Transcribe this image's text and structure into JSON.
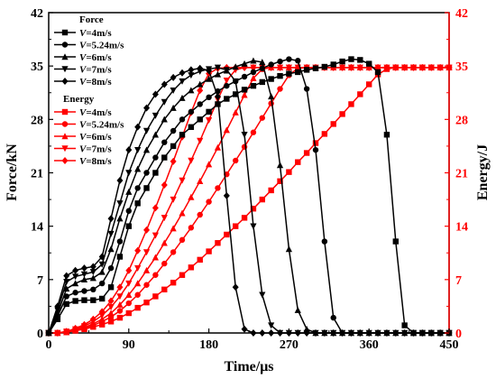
{
  "chart_data": {
    "type": "line",
    "title": "",
    "xlabel": "Time/μs",
    "ylabel_left": "Force/kN",
    "ylabel_right": "Energy/J",
    "xlim": [
      0,
      450
    ],
    "ylim_left": [
      0,
      42
    ],
    "ylim_right": [
      0,
      42
    ],
    "xticks": [
      0,
      90,
      180,
      270,
      360,
      450
    ],
    "yticks_left": [
      0,
      7,
      14,
      21,
      28,
      35,
      42
    ],
    "yticks_right": [
      0,
      7,
      14,
      21,
      28,
      35,
      42
    ],
    "grid": false,
    "legend_placement": "top-left",
    "colors": {
      "force": "#000000",
      "energy": "#ff0000"
    },
    "legend": {
      "force_title": "Force",
      "energy_title": "Energy",
      "entries": [
        {
          "var": "V",
          "rest": "=4m/s"
        },
        {
          "var": "V",
          "rest": "=5.24m/s"
        },
        {
          "var": "V",
          "rest": "=6m/s"
        },
        {
          "var": "V",
          "rest": "=7m/s"
        },
        {
          "var": "V",
          "rest": "=8m/s"
        }
      ]
    },
    "force_series": [
      {
        "marker": "square",
        "x": [
          0,
          10,
          20,
          30,
          40,
          50,
          60,
          70,
          80,
          90,
          100,
          110,
          120,
          130,
          140,
          150,
          160,
          170,
          180,
          190,
          200,
          210,
          220,
          230,
          240,
          250,
          260,
          270,
          280,
          290,
          300,
          310,
          320,
          330,
          340,
          350,
          360,
          370,
          380,
          390,
          400,
          410,
          420,
          430,
          440,
          450
        ],
        "y": [
          0,
          1.8,
          3.8,
          4.2,
          4.3,
          4.3,
          4.5,
          6,
          10,
          14,
          17,
          19,
          21,
          23,
          24.5,
          26,
          27,
          28,
          29,
          30,
          30.7,
          31.3,
          31.9,
          32.4,
          32.9,
          33.3,
          33.7,
          34,
          34.2,
          34.5,
          34.7,
          34.9,
          35.2,
          35.6,
          35.9,
          35.8,
          35.3,
          34.2,
          26,
          12,
          1,
          0,
          0,
          0,
          0,
          0
        ]
      },
      {
        "marker": "circle",
        "x": [
          0,
          10,
          20,
          30,
          40,
          50,
          60,
          70,
          80,
          90,
          100,
          110,
          120,
          130,
          140,
          150,
          160,
          170,
          180,
          190,
          200,
          210,
          220,
          230,
          240,
          250,
          260,
          270,
          280,
          290,
          300,
          310,
          320,
          330,
          340,
          350,
          360,
          370,
          380,
          390,
          400,
          410,
          420,
          430,
          440,
          450
        ],
        "y": [
          0,
          2.2,
          4.8,
          5.3,
          5.5,
          5.7,
          6.5,
          8.5,
          12,
          16,
          19,
          21,
          23,
          25,
          26.5,
          28,
          29,
          30,
          30.9,
          31.7,
          32.4,
          33,
          33.6,
          34.2,
          34.7,
          35.2,
          35.6,
          35.9,
          35.7,
          32,
          24,
          12,
          2,
          0,
          0,
          0,
          0,
          0,
          0,
          0,
          0,
          0,
          0,
          0,
          0,
          0
        ]
      },
      {
        "marker": "triangle-up",
        "x": [
          0,
          10,
          20,
          30,
          40,
          50,
          60,
          70,
          80,
          90,
          100,
          110,
          120,
          130,
          140,
          150,
          160,
          170,
          180,
          190,
          200,
          210,
          220,
          230,
          240,
          250,
          260,
          270,
          280,
          290,
          300,
          310,
          320,
          330,
          340,
          350,
          360,
          370,
          380,
          390,
          400,
          410,
          420,
          430,
          440,
          450
        ],
        "y": [
          0,
          2.5,
          5.8,
          6.5,
          7,
          7.2,
          8,
          11,
          15,
          18.5,
          21.5,
          24,
          26,
          28,
          29.5,
          30.8,
          31.8,
          32.6,
          33.3,
          33.9,
          34.4,
          34.9,
          35.3,
          35.7,
          35.5,
          31,
          22,
          11,
          3,
          0.5,
          0,
          0,
          0,
          0,
          0,
          0,
          0,
          0,
          0,
          0,
          0,
          0,
          0,
          0,
          0,
          0
        ]
      },
      {
        "marker": "triangle-down",
        "x": [
          0,
          10,
          20,
          30,
          40,
          50,
          60,
          70,
          80,
          90,
          100,
          110,
          120,
          130,
          140,
          150,
          160,
          170,
          180,
          190,
          200,
          210,
          220,
          230,
          240,
          250,
          260,
          270,
          280,
          290,
          300,
          310,
          320,
          330,
          340,
          350,
          360,
          370,
          380,
          390,
          400,
          410,
          420,
          430,
          440,
          450
        ],
        "y": [
          0,
          3,
          6.7,
          7.4,
          7.7,
          8,
          9,
          13,
          17,
          21,
          24,
          26.5,
          28.5,
          30.3,
          31.8,
          33,
          33.8,
          34.3,
          34.6,
          34.8,
          34.5,
          33,
          26,
          14,
          5,
          1,
          0,
          0,
          0,
          0,
          0,
          0,
          0,
          0,
          0,
          0,
          0,
          0,
          0,
          0,
          0,
          0,
          0,
          0,
          0,
          0
        ]
      },
      {
        "marker": "diamond",
        "x": [
          0,
          10,
          20,
          30,
          40,
          50,
          60,
          70,
          80,
          90,
          100,
          110,
          120,
          130,
          140,
          150,
          160,
          170,
          180,
          190,
          200,
          210,
          220,
          230,
          240,
          250,
          260,
          270,
          280,
          290,
          300,
          310,
          320,
          330,
          340,
          350,
          360,
          370,
          380,
          390,
          400,
          410,
          420,
          430,
          440,
          450
        ],
        "y": [
          0,
          3.5,
          7.5,
          8.2,
          8.5,
          8.7,
          10,
          15,
          20,
          24,
          27,
          29.5,
          31.3,
          32.6,
          33.5,
          34.1,
          34.5,
          34.7,
          34.4,
          31,
          18,
          6,
          0.5,
          0,
          0,
          0,
          0,
          0,
          0,
          0,
          0,
          0,
          0,
          0,
          0,
          0,
          0,
          0,
          0,
          0,
          0,
          0,
          0,
          0,
          0,
          0
        ]
      }
    ],
    "energy_series": [
      {
        "marker": "square",
        "x": [
          0,
          10,
          20,
          30,
          40,
          50,
          60,
          70,
          80,
          90,
          100,
          110,
          120,
          130,
          140,
          150,
          160,
          170,
          180,
          190,
          200,
          210,
          220,
          230,
          240,
          250,
          260,
          270,
          280,
          290,
          300,
          310,
          320,
          330,
          340,
          350,
          360,
          370,
          380,
          390,
          400,
          410,
          420,
          430,
          440,
          450
        ],
        "y": [
          0,
          0,
          0.1,
          0.3,
          0.5,
          0.8,
          1.1,
          1.5,
          2,
          2.6,
          3.3,
          4,
          4.8,
          5.7,
          6.6,
          7.6,
          8.6,
          9.6,
          10.7,
          11.8,
          12.9,
          14,
          15.1,
          16.3,
          17.5,
          18.7,
          19.9,
          21.1,
          22.4,
          23.6,
          24.9,
          26.1,
          27.4,
          28.7,
          30,
          31.3,
          32.6,
          33.9,
          34.6,
          34.8,
          34.8,
          34.8,
          34.8,
          34.8,
          34.8,
          34.8
        ]
      },
      {
        "marker": "circle",
        "x": [
          0,
          10,
          20,
          30,
          40,
          50,
          60,
          70,
          80,
          90,
          100,
          110,
          120,
          130,
          140,
          150,
          160,
          170,
          180,
          190,
          200,
          210,
          220,
          230,
          240,
          250,
          260,
          270,
          280,
          290,
          300,
          310,
          320,
          330,
          340,
          350,
          360,
          370,
          380,
          390,
          400,
          410,
          420,
          430,
          440,
          450
        ],
        "y": [
          0,
          0,
          0.1,
          0.3,
          0.6,
          1,
          1.5,
          2.1,
          2.9,
          3.9,
          5,
          6.3,
          7.6,
          9.1,
          10.6,
          12.2,
          13.8,
          15.5,
          17.2,
          19,
          20.8,
          22.6,
          24.4,
          26.3,
          28.2,
          30.1,
          32,
          33.8,
          34.7,
          34.8,
          34.8,
          34.8,
          34.8,
          34.8,
          34.8,
          34.8,
          34.8,
          34.8,
          34.8,
          34.8,
          34.8,
          34.8,
          34.8,
          34.8,
          34.8,
          34.8
        ]
      },
      {
        "marker": "triangle-up",
        "x": [
          0,
          10,
          20,
          30,
          40,
          50,
          60,
          70,
          80,
          90,
          100,
          110,
          120,
          130,
          140,
          150,
          160,
          170,
          180,
          190,
          200,
          210,
          220,
          230,
          240,
          250,
          260,
          270,
          280,
          290,
          300,
          310,
          320,
          330,
          340,
          350,
          360,
          370,
          380,
          390,
          400,
          410,
          420,
          430,
          440,
          450
        ],
        "y": [
          0,
          0,
          0.1,
          0.4,
          0.7,
          1.2,
          1.8,
          2.6,
          3.7,
          5,
          6.5,
          8.2,
          9.9,
          11.8,
          13.7,
          15.7,
          17.8,
          19.9,
          22.1,
          24.3,
          26.6,
          28.9,
          31.2,
          33.4,
          34.6,
          34.8,
          34.8,
          34.8,
          34.8,
          34.8,
          34.8,
          34.8,
          34.8,
          34.8,
          34.8,
          34.8,
          34.8,
          34.8,
          34.8,
          34.8,
          34.8,
          34.8,
          34.8,
          34.8,
          34.8,
          34.8
        ]
      },
      {
        "marker": "triangle-down",
        "x": [
          0,
          10,
          20,
          30,
          40,
          50,
          60,
          70,
          80,
          90,
          100,
          110,
          120,
          130,
          140,
          150,
          160,
          170,
          180,
          190,
          200,
          210,
          220,
          230,
          240,
          250,
          260,
          270,
          280,
          290,
          300,
          310,
          320,
          330,
          340,
          350,
          360,
          370,
          380,
          390,
          400,
          410,
          420,
          430,
          440,
          450
        ],
        "y": [
          0,
          0,
          0.2,
          0.5,
          0.9,
          1.5,
          2.3,
          3.4,
          4.8,
          6.5,
          8.5,
          10.6,
          12.8,
          15.1,
          17.5,
          20,
          22.6,
          25.2,
          27.9,
          30.6,
          33.1,
          34.5,
          34.8,
          34.8,
          34.8,
          34.8,
          34.8,
          34.8,
          34.8,
          34.8,
          34.8,
          34.8,
          34.8,
          34.8,
          34.8,
          34.8,
          34.8,
          34.8,
          34.8,
          34.8,
          34.8,
          34.8,
          34.8,
          34.8,
          34.8,
          34.8
        ]
      },
      {
        "marker": "diamond",
        "x": [
          0,
          10,
          20,
          30,
          40,
          50,
          60,
          70,
          80,
          90,
          100,
          110,
          120,
          130,
          140,
          150,
          160,
          170,
          180,
          190,
          200,
          210,
          220,
          230,
          240,
          250,
          260,
          270,
          280,
          290,
          300,
          310,
          320,
          330,
          340,
          350,
          360,
          370,
          380,
          390,
          400,
          410,
          420,
          430,
          440,
          450
        ],
        "y": [
          0,
          0,
          0.2,
          0.6,
          1.1,
          1.8,
          2.8,
          4.2,
          6,
          8.2,
          10.8,
          13.5,
          16.4,
          19.4,
          22.5,
          25.7,
          28.9,
          31.8,
          34,
          34.7,
          34.8,
          34.8,
          34.8,
          34.8,
          34.8,
          34.8,
          34.8,
          34.8,
          34.8,
          34.8,
          34.8,
          34.8,
          34.8,
          34.8,
          34.8,
          34.8,
          34.8,
          34.8,
          34.8,
          34.8,
          34.8,
          34.8,
          34.8,
          34.8,
          34.8,
          34.8
        ]
      }
    ]
  }
}
